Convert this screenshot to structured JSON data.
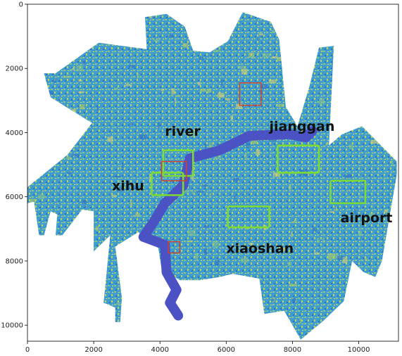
{
  "map": {
    "x_range": [
      0,
      11200
    ],
    "y_range": [
      10500,
      0
    ],
    "x_ticks": [
      0,
      2000,
      4000,
      6000,
      8000,
      10000
    ],
    "y_ticks": [
      0,
      2000,
      4000,
      6000,
      8000,
      10000
    ],
    "colors": {
      "base": "#3f9ccf",
      "veg_dark": "#2f6fc4",
      "urban": "#b9d35a",
      "urban_hot": "#e7d867",
      "river": "#4a52c4",
      "green_box": "#7ddc2f",
      "red_box": "#d0432c"
    },
    "labels": [
      {
        "text": "river",
        "x": 4150,
        "y": 4100
      },
      {
        "text": "jianggan",
        "x": 7300,
        "y": 3950
      },
      {
        "text": "xihu",
        "x": 2550,
        "y": 5800
      },
      {
        "text": "airport",
        "x": 9450,
        "y": 6800
      },
      {
        "text": "xiaoshan",
        "x": 6000,
        "y": 7750
      }
    ],
    "green_regions": [
      {
        "name": "river",
        "x0": 4100,
        "y0": 4550,
        "x1": 5000,
        "y1": 5350
      },
      {
        "name": "xihu",
        "x0": 3750,
        "y0": 5250,
        "x1": 4700,
        "y1": 5950
      },
      {
        "name": "jianggan",
        "x0": 7550,
        "y0": 4400,
        "x1": 8800,
        "y1": 5250
      },
      {
        "name": "airport",
        "x0": 9150,
        "y0": 5500,
        "x1": 10200,
        "y1": 6200
      },
      {
        "name": "xiaoshan",
        "x0": 6050,
        "y0": 6300,
        "x1": 7300,
        "y1": 6950
      }
    ],
    "red_regions": [
      {
        "x0": 6400,
        "y0": 2450,
        "x1": 7050,
        "y1": 3150
      },
      {
        "x0": 4050,
        "y0": 4900,
        "x1": 4800,
        "y1": 5500
      },
      {
        "x0": 4250,
        "y0": 7400,
        "x1": 4600,
        "y1": 7750
      }
    ],
    "boundary": [
      [
        2150,
        1200
      ],
      [
        3600,
        1400
      ],
      [
        3550,
        400
      ],
      [
        4200,
        300
      ],
      [
        4750,
        700
      ],
      [
        5000,
        1450
      ],
      [
        5500,
        1500
      ],
      [
        6050,
        1150
      ],
      [
        6500,
        250
      ],
      [
        7350,
        550
      ],
      [
        7600,
        1100
      ],
      [
        7800,
        3200
      ],
      [
        8150,
        3800
      ],
      [
        8500,
        2600
      ],
      [
        8800,
        1350
      ],
      [
        9250,
        1300
      ],
      [
        9100,
        4400
      ],
      [
        9500,
        4050
      ],
      [
        10100,
        3800
      ],
      [
        11150,
        4900
      ],
      [
        11150,
        5300
      ],
      [
        10700,
        8000
      ],
      [
        10500,
        8500
      ],
      [
        10150,
        8350
      ],
      [
        9800,
        8000
      ],
      [
        9550,
        9250
      ],
      [
        8950,
        9850
      ],
      [
        8250,
        10450
      ],
      [
        7750,
        9550
      ],
      [
        7150,
        9650
      ],
      [
        7000,
        8550
      ],
      [
        6200,
        8400
      ],
      [
        5800,
        8500
      ],
      [
        5200,
        8600
      ],
      [
        4600,
        8600
      ],
      [
        4050,
        8250
      ],
      [
        3950,
        7600
      ],
      [
        3350,
        7100
      ],
      [
        2650,
        7550
      ],
      [
        2850,
        9150
      ],
      [
        2800,
        9900
      ],
      [
        2650,
        9900
      ],
      [
        2650,
        9450
      ],
      [
        2300,
        9300
      ],
      [
        2500,
        7200
      ],
      [
        2000,
        7700
      ],
      [
        2000,
        6450
      ],
      [
        1650,
        6400
      ],
      [
        1050,
        7200
      ],
      [
        850,
        7200
      ],
      [
        900,
        6550
      ],
      [
        700,
        6450
      ],
      [
        500,
        7200
      ],
      [
        350,
        7200
      ],
      [
        200,
        6150
      ],
      [
        0,
        6200
      ],
      [
        0,
        5700
      ],
      [
        1200,
        4700
      ],
      [
        1950,
        3700
      ],
      [
        700,
        2900
      ],
      [
        500,
        2150
      ],
      [
        850,
        2150
      ]
    ],
    "river_path": [
      [
        8600,
        3950
      ],
      [
        8400,
        4150
      ],
      [
        7900,
        4050
      ],
      [
        6700,
        4100
      ],
      [
        5800,
        4550
      ],
      [
        4900,
        4800
      ],
      [
        4700,
        5650
      ],
      [
        4150,
        6200
      ],
      [
        3800,
        6800
      ],
      [
        3500,
        7250
      ],
      [
        4150,
        7500
      ],
      [
        4200,
        8350
      ],
      [
        4500,
        8900
      ],
      [
        4300,
        9300
      ],
      [
        4550,
        9700
      ]
    ]
  }
}
